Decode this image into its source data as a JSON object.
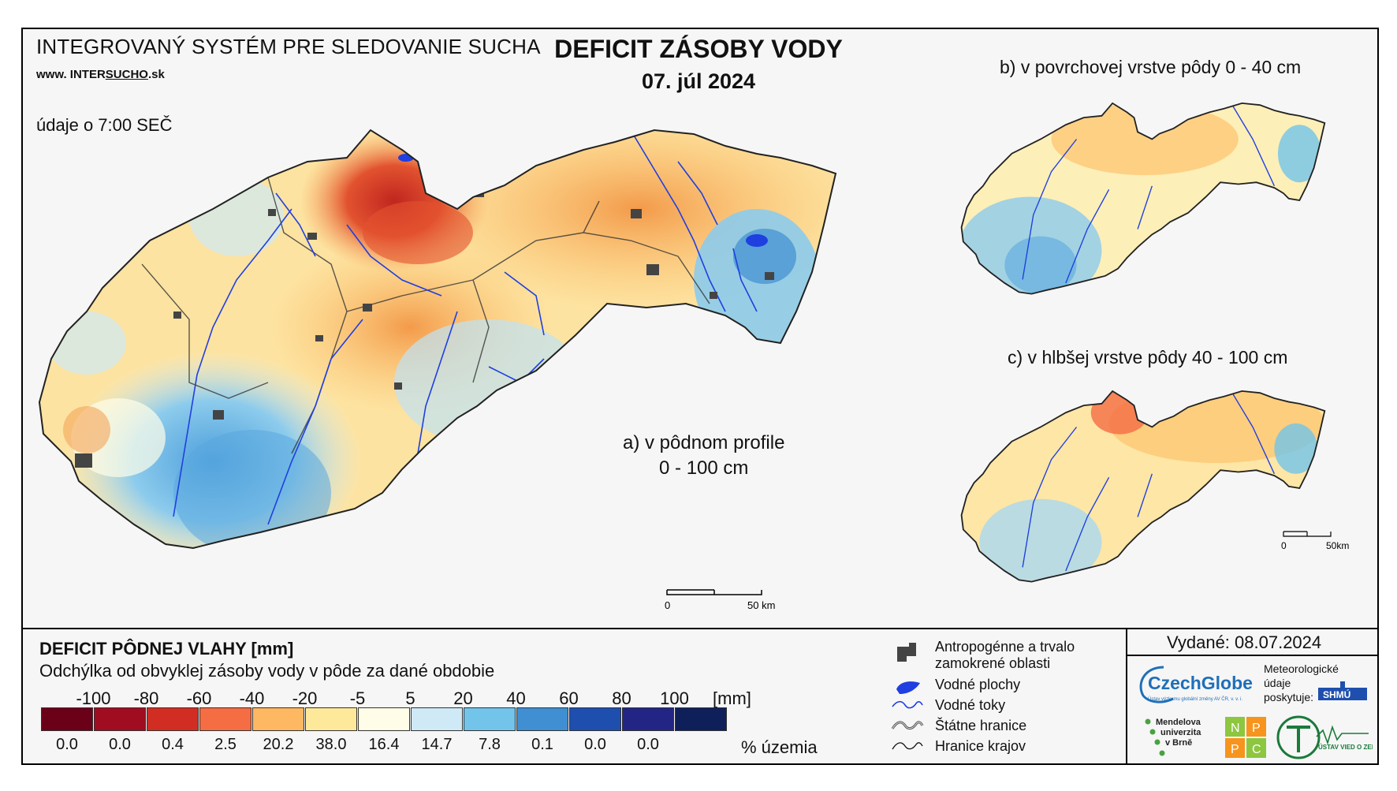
{
  "header": {
    "system_title": "INTEGROVANÝ SYSTÉM PRE SLEDOVANIE SUCHA",
    "website_prefix": "www. INTER",
    "website_mid": "SUCHO",
    "website_suffix": ".sk",
    "data_time": "údaje o 7:00 SEČ",
    "title": "DEFICIT ZÁSOBY VODY",
    "date": "07. júl 2024"
  },
  "maps": {
    "a_line1": "a) v pôdnom profile",
    "a_line2": "0 - 100 cm",
    "b": "b) v povrchovej vrstve pôdy 0 - 40 cm",
    "c": "c) v hlbšej vrstve pôdy 40 - 100 cm",
    "scale_main_zero": "0",
    "scale_main_end": "50 km",
    "scale_small_zero": "0",
    "scale_small_end": "50km"
  },
  "legend": {
    "title": "DEFICIT PÔDNEJ VLAHY [mm]",
    "subtitle": "Odchýlka od obvyklej zásoby vody v pôde za dané obdobie",
    "unit": "[mm]",
    "share_label": "% územia",
    "ticks": [
      "-100",
      "-80",
      "-60",
      "-40",
      "-20",
      "-5",
      "5",
      "20",
      "40",
      "60",
      "80",
      "100"
    ],
    "colors": [
      "#6b0019",
      "#a00d20",
      "#d22d22",
      "#f46d43",
      "#fdb861",
      "#fee99a",
      "#fffde8",
      "#cfe9f6",
      "#72c4ea",
      "#3f8fd2",
      "#1f4fae",
      "#232584",
      "#0f1f5a"
    ],
    "percentages": [
      "0.0",
      "0.0",
      "0.4",
      "2.5",
      "20.2",
      "38.0",
      "16.4",
      "14.7",
      "7.8",
      "0.1",
      "0.0",
      "0.0"
    ]
  },
  "map_legend": {
    "anthropogenic_1": "Antropogénne a trvalo",
    "anthropogenic_2": "zamokrené oblasti",
    "water_bodies": "Vodné plochy",
    "rivers": "Vodné toky",
    "state_border": "Štátne hranice",
    "regional_border": "Hranice krajov"
  },
  "footer": {
    "issued": "Vydané: 08.07.2024",
    "czechglobe": "CzechGlobe",
    "czechglobe_sub": "Ústav výzkumu globální změny AV ČR, v. v. i.",
    "meteo_1": "Meteorologické",
    "meteo_2": "údaje",
    "meteo_3": "poskytuje:",
    "shmu": "SHMÚ",
    "mendel_1": "Mendelova",
    "mendel_2": "univerzita",
    "mendel_3": "v Brně",
    "nppc": [
      "N",
      "P",
      "P",
      "C"
    ],
    "uvz": "ÚSTAV VIED O ZEMI"
  }
}
